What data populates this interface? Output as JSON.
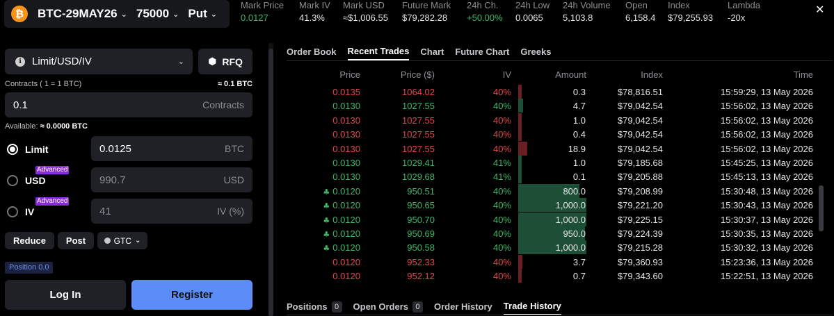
{
  "header": {
    "instrument": "BTC-29MAY26",
    "strike": "75000",
    "option_type": "Put",
    "stats": [
      {
        "label": "Mark Price",
        "value": "0.0127",
        "color": "green"
      },
      {
        "label": "Mark IV",
        "value": "41.3%",
        "color": ""
      },
      {
        "label": "Mark USD",
        "value": "≈$1,006.55",
        "color": ""
      },
      {
        "label": "Future Mark",
        "value": "$79,282.28",
        "color": ""
      },
      {
        "label": "24h Ch.",
        "value": "+50.00%",
        "color": "green"
      },
      {
        "label": "24h Low",
        "value": "0.0065",
        "color": ""
      },
      {
        "label": "24h Volume",
        "value": "5,103.8",
        "color": ""
      },
      {
        "label": "Open",
        "value": "6,158.4",
        "color": ""
      },
      {
        "label": "Index",
        "value": "$79,255.93",
        "color": ""
      },
      {
        "label": "Lambda",
        "value": "-20x",
        "color": ""
      }
    ]
  },
  "order_form": {
    "order_type": "Limit/USD/IV",
    "rfq_label": "RFQ",
    "contracts_label": "Contracts ( 1 = 1 BTC)",
    "contracts_approx": "≈ 0.1 BTC",
    "contracts_value": "0.1",
    "contracts_unit": "Contracts",
    "available_label": "Available:",
    "available_value": "≈ 0.0000 BTC",
    "modes": [
      {
        "label": "Limit",
        "value": "0.0125",
        "unit": "BTC",
        "badge": "",
        "selected": true
      },
      {
        "label": "USD",
        "value": "990.7",
        "unit": "USD",
        "badge": "Advanced",
        "selected": false
      },
      {
        "label": "IV",
        "value": "41",
        "unit": "IV (%)",
        "badge": "Advanced",
        "selected": false
      }
    ],
    "reduce_label": "Reduce",
    "post_label": "Post",
    "tif_label": "GTC",
    "position_label": "Position 0.0",
    "login_label": "Log In",
    "register_label": "Register"
  },
  "top_tabs": [
    "Order Book",
    "Recent Trades",
    "Chart",
    "Future Chart",
    "Greeks"
  ],
  "active_top_tab": 1,
  "trades": {
    "columns": [
      "Price",
      "Price ($)",
      "IV",
      "Amount",
      "Index",
      "Time"
    ],
    "rows": [
      {
        "price": "0.0135",
        "price_usd": "1064.02",
        "iv": "40%",
        "amount": "0.3",
        "amount_value": 0.3,
        "index": "$78,816.51",
        "time": "15:59:29, 13 May 2026",
        "side": "sell",
        "block": false
      },
      {
        "price": "0.0130",
        "price_usd": "1027.55",
        "iv": "40%",
        "amount": "4.7",
        "amount_value": 4.7,
        "index": "$79,042.54",
        "time": "15:56:02, 13 May 2026",
        "side": "buy",
        "block": false
      },
      {
        "price": "0.0130",
        "price_usd": "1027.55",
        "iv": "40%",
        "amount": "1.0",
        "amount_value": 1.0,
        "index": "$79,042.54",
        "time": "15:56:02, 13 May 2026",
        "side": "sell",
        "block": false
      },
      {
        "price": "0.0130",
        "price_usd": "1027.55",
        "iv": "40%",
        "amount": "0.4",
        "amount_value": 0.4,
        "index": "$79,042.54",
        "time": "15:56:02, 13 May 2026",
        "side": "sell",
        "block": false
      },
      {
        "price": "0.0130",
        "price_usd": "1027.55",
        "iv": "40%",
        "amount": "18.9",
        "amount_value": 18.9,
        "index": "$79,042.54",
        "time": "15:56:02, 13 May 2026",
        "side": "sell",
        "block": false
      },
      {
        "price": "0.0130",
        "price_usd": "1029.41",
        "iv": "41%",
        "amount": "1.0",
        "amount_value": 1.0,
        "index": "$79,185.68",
        "time": "15:45:25, 13 May 2026",
        "side": "buy",
        "block": false
      },
      {
        "price": "0.0130",
        "price_usd": "1029.68",
        "iv": "41%",
        "amount": "0.1",
        "amount_value": 0.1,
        "index": "$79,205.88",
        "time": "15:45:13, 13 May 2026",
        "side": "buy",
        "block": false
      },
      {
        "price": "0.0120",
        "price_usd": "950.51",
        "iv": "40%",
        "amount": "800.0",
        "amount_value": 800.0,
        "index": "$79,208.99",
        "time": "15:30:48, 13 May 2026",
        "side": "buy",
        "block": true
      },
      {
        "price": "0.0120",
        "price_usd": "950.65",
        "iv": "40%",
        "amount": "1,000.0",
        "amount_value": 1000.0,
        "index": "$79,221.20",
        "time": "15:30:43, 13 May 2026",
        "side": "buy",
        "block": true
      },
      {
        "price": "0.0120",
        "price_usd": "950.70",
        "iv": "40%",
        "amount": "1,000.0",
        "amount_value": 1000.0,
        "index": "$79,225.15",
        "time": "15:30:37, 13 May 2026",
        "side": "buy",
        "block": true
      },
      {
        "price": "0.0120",
        "price_usd": "950.69",
        "iv": "40%",
        "amount": "950.0",
        "amount_value": 950.0,
        "index": "$79,224.39",
        "time": "15:30:35, 13 May 2026",
        "side": "buy",
        "block": true
      },
      {
        "price": "0.0120",
        "price_usd": "950.58",
        "iv": "40%",
        "amount": "1,000.0",
        "amount_value": 1000.0,
        "index": "$79,215.28",
        "time": "15:30:32, 13 May 2026",
        "side": "buy",
        "block": true
      },
      {
        "price": "0.0120",
        "price_usd": "952.33",
        "iv": "40%",
        "amount": "3.7",
        "amount_value": 3.7,
        "index": "$79,360.93",
        "time": "15:23:36, 13 May 2026",
        "side": "sell",
        "block": false
      },
      {
        "price": "0.0120",
        "price_usd": "952.12",
        "iv": "40%",
        "amount": "0.7",
        "amount_value": 0.7,
        "index": "$79,343.60",
        "time": "15:22:51, 13 May 2026",
        "side": "sell",
        "block": false
      }
    ]
  },
  "bottom_tabs": [
    {
      "label": "Positions",
      "count": "0"
    },
    {
      "label": "Open Orders",
      "count": "0"
    },
    {
      "label": "Order History",
      "count": ""
    },
    {
      "label": "Trade History",
      "count": ""
    }
  ],
  "active_bottom_tab": 3,
  "colors": {
    "buy": "#3fb668",
    "sell": "#e0474c",
    "accent": "#5b8cf7",
    "bitcoin": "#f7931a",
    "advanced_badge": "#8a2ad9"
  },
  "icons": {
    "logo": "bitcoin-icon",
    "close": "close-icon",
    "info": "info-icon",
    "rfq": "cube-icon",
    "block_trade": "block-trade-icon"
  }
}
